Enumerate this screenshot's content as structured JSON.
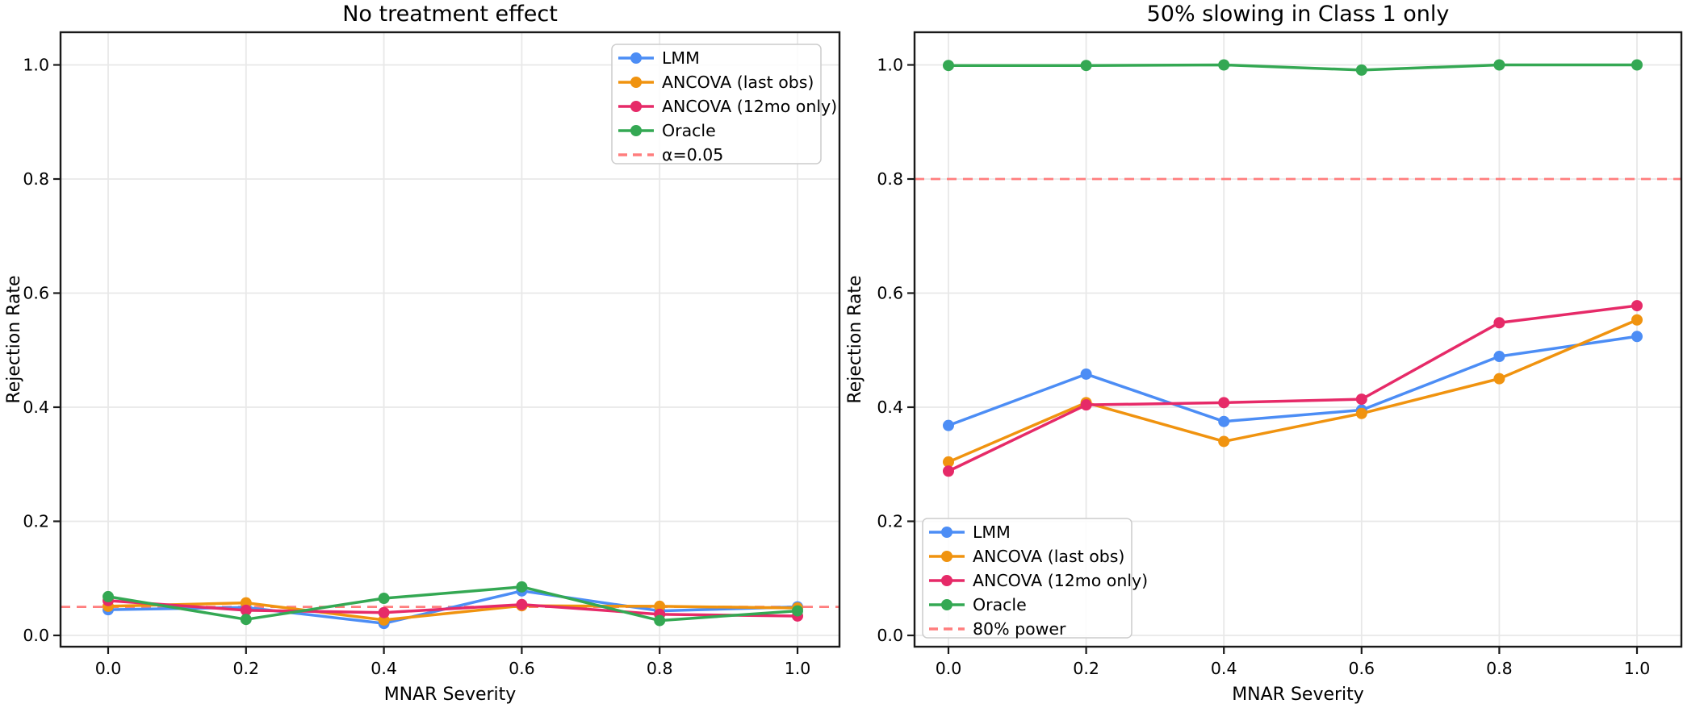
{
  "figure": {
    "background": "#ffffff",
    "text_color": "#000000",
    "spine_color": "#1a1a1a",
    "grid_color": "#e8e8e8"
  },
  "chart_data": [
    {
      "type": "line",
      "title": "No treatment effect",
      "xlabel": "MNAR Severity",
      "ylabel": "Rejection Rate",
      "x": [
        0.0,
        0.2,
        0.4,
        0.6,
        0.8,
        1.0
      ],
      "xtick_labels": [
        "0.0",
        "0.2",
        "0.4",
        "0.6",
        "0.8",
        "1.0"
      ],
      "ytick_values": [
        0.0,
        0.2,
        0.4,
        0.6,
        0.8,
        1.0
      ],
      "ytick_labels": [
        "0.0",
        "0.2",
        "0.4",
        "0.6",
        "0.8",
        "1.0"
      ],
      "ylim": [
        -0.02,
        1.057
      ],
      "grid": true,
      "legend_position": "upper-right",
      "series": [
        {
          "name": "LMM",
          "color": "#4c8df5",
          "values": [
            0.045,
            0.049,
            0.021,
            0.078,
            0.043,
            0.05
          ]
        },
        {
          "name": "ANCOVA (last obs)",
          "color": "#f0930f",
          "values": [
            0.051,
            0.057,
            0.027,
            0.052,
            0.051,
            0.048
          ]
        },
        {
          "name": "ANCOVA (12mo only)",
          "color": "#e62a68",
          "values": [
            0.061,
            0.044,
            0.04,
            0.054,
            0.037,
            0.034
          ]
        },
        {
          "name": "Oracle",
          "color": "#34a853",
          "values": [
            0.068,
            0.028,
            0.065,
            0.085,
            0.026,
            0.043
          ]
        }
      ],
      "ref_line": {
        "label": "α=0.05",
        "value": 0.05,
        "color": "#ff7d7d",
        "style": "dashed"
      }
    },
    {
      "type": "line",
      "title": "50% slowing in Class 1 only",
      "xlabel": "MNAR Severity",
      "ylabel": "Rejection Rate",
      "x": [
        0.0,
        0.2,
        0.4,
        0.6,
        0.8,
        1.0
      ],
      "xtick_labels": [
        "0.0",
        "0.2",
        "0.4",
        "0.6",
        "0.8",
        "1.0"
      ],
      "ytick_values": [
        0.0,
        0.2,
        0.4,
        0.6,
        0.8,
        1.0
      ],
      "ytick_labels": [
        "0.0",
        "0.2",
        "0.4",
        "0.6",
        "0.8",
        "1.0"
      ],
      "ylim": [
        -0.02,
        1.057
      ],
      "grid": true,
      "legend_position": "lower-left",
      "series": [
        {
          "name": "LMM",
          "color": "#4c8df5",
          "values": [
            0.368,
            0.458,
            0.375,
            0.395,
            0.489,
            0.524
          ]
        },
        {
          "name": "ANCOVA (last obs)",
          "color": "#f0930f",
          "values": [
            0.304,
            0.408,
            0.34,
            0.389,
            0.45,
            0.553
          ]
        },
        {
          "name": "ANCOVA (12mo only)",
          "color": "#e62a68",
          "values": [
            0.288,
            0.404,
            0.408,
            0.414,
            0.548,
            0.578
          ]
        },
        {
          "name": "Oracle",
          "color": "#34a853",
          "values": [
            0.999,
            0.999,
            1.0,
            0.991,
            1.0,
            1.0
          ]
        }
      ],
      "ref_line": {
        "label": "80% power",
        "value": 0.8,
        "color": "#ff7d7d",
        "style": "dashed"
      }
    }
  ]
}
